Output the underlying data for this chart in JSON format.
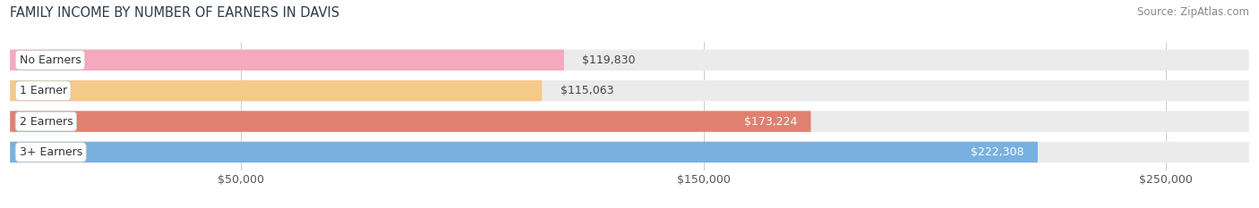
{
  "title": "FAMILY INCOME BY NUMBER OF EARNERS IN DAVIS",
  "source": "Source: ZipAtlas.com",
  "categories": [
    "No Earners",
    "1 Earner",
    "2 Earners",
    "3+ Earners"
  ],
  "values": [
    119830,
    115063,
    173224,
    222308
  ],
  "bar_colors": [
    "#f5a8be",
    "#f5c98a",
    "#e08070",
    "#78b0e0"
  ],
  "label_colors": [
    "#555555",
    "#555555",
    "#ffffff",
    "#ffffff"
  ],
  "xlim": [
    0,
    268000
  ],
  "xticks": [
    50000,
    150000,
    250000
  ],
  "xtick_labels": [
    "$50,000",
    "$150,000",
    "$250,000"
  ],
  "background_color": "#ffffff",
  "bar_background_color": "#ebebeb",
  "title_fontsize": 10.5,
  "source_fontsize": 8.5,
  "value_fontsize": 9,
  "cat_fontsize": 9,
  "tick_fontsize": 9,
  "bar_height": 0.68
}
